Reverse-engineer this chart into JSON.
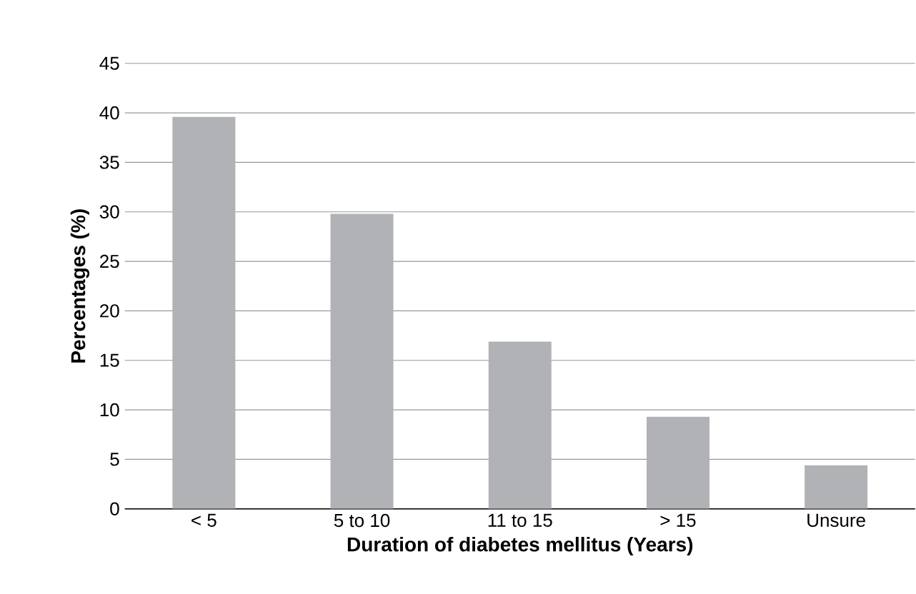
{
  "chart_data": {
    "type": "bar",
    "xlabel": "Duration of diabetes mellitus (Years)",
    "ylabel": "Percentages (%)",
    "categories": [
      "< 5",
      "5 to 10",
      "11 to 15",
      "> 15",
      "Unsure"
    ],
    "values": [
      39.6,
      29.8,
      16.9,
      9.3,
      4.4
    ],
    "color": "#b1b2b5",
    "ylim": [
      0,
      45
    ],
    "yticks": [
      0,
      5,
      10,
      15,
      20,
      25,
      30,
      35,
      40,
      45
    ],
    "grid": "y"
  }
}
